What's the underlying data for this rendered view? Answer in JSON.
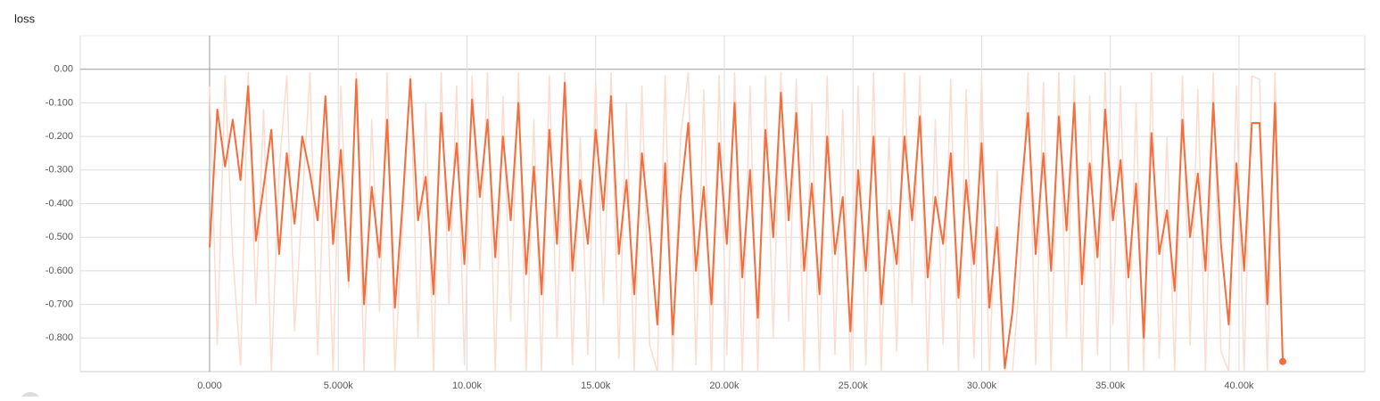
{
  "chart_data": {
    "type": "line",
    "title": "loss",
    "x": [
      0,
      300,
      600,
      900,
      1200,
      1500,
      1800,
      2100,
      2400,
      2700,
      3000,
      3300,
      3600,
      3900,
      4200,
      4500,
      4800,
      5100,
      5400,
      5700,
      6000,
      6300,
      6600,
      6900,
      7200,
      7500,
      7800,
      8100,
      8400,
      8700,
      9000,
      9300,
      9600,
      9900,
      10200,
      10500,
      10800,
      11100,
      11400,
      11700,
      12000,
      12300,
      12600,
      12900,
      13200,
      13500,
      13800,
      14100,
      14400,
      14700,
      15000,
      15300,
      15600,
      15900,
      16200,
      16500,
      16800,
      17100,
      17400,
      17700,
      18000,
      18300,
      18600,
      18900,
      19200,
      19500,
      19800,
      20100,
      20400,
      20700,
      21000,
      21300,
      21600,
      21900,
      22200,
      22500,
      22800,
      23100,
      23400,
      23700,
      24000,
      24300,
      24600,
      24900,
      25200,
      25500,
      25800,
      26100,
      26400,
      26700,
      27000,
      27300,
      27600,
      27900,
      28200,
      28500,
      28800,
      29100,
      29400,
      29700,
      30000,
      30300,
      30600,
      30900,
      31200,
      31500,
      31800,
      32100,
      32400,
      32700,
      33000,
      33300,
      33600,
      33900,
      34200,
      34500,
      34800,
      35100,
      35400,
      35700,
      36000,
      36300,
      36600,
      36900,
      37200,
      37500,
      37800,
      38100,
      38400,
      38700,
      39000,
      39300,
      39600,
      39900,
      40200,
      40500,
      40800,
      41100,
      41400,
      41700
    ],
    "series": [
      {
        "color": "#fbdccf",
        "values": [
          -0.05,
          -0.82,
          -0.02,
          -0.55,
          -0.88,
          -0.01,
          -0.7,
          -0.12,
          -0.9,
          -0.3,
          -0.02,
          -0.78,
          -0.4,
          -0.01,
          -0.85,
          -0.2,
          -0.9,
          -0.05,
          -0.65,
          -0.01,
          -0.9,
          -0.15,
          -0.72,
          -0.01,
          -0.9,
          -0.45,
          -0.02,
          -0.8,
          -0.1,
          -0.9,
          -0.01,
          -0.7,
          -0.05,
          -0.88,
          -0.02,
          -0.6,
          -0.01,
          -0.9,
          -0.08,
          -0.75,
          -0.01,
          -0.9,
          -0.15,
          -0.9,
          -0.02,
          -0.8,
          -0.01,
          -0.88,
          -0.2,
          -0.85,
          -0.03,
          -0.7,
          -0.01,
          -0.86,
          -0.1,
          -0.9,
          -0.05,
          -0.82,
          -0.9,
          -0.02,
          -0.9,
          -0.2,
          -0.01,
          -0.88,
          -0.06,
          -0.9,
          -0.02,
          -0.85,
          -0.01,
          -0.9,
          -0.05,
          -0.9,
          -0.02,
          -0.8,
          -0.01,
          -0.75,
          -0.03,
          -0.9,
          -0.1,
          -0.9,
          -0.02,
          -0.85,
          -0.12,
          -0.9,
          -0.05,
          -0.88,
          -0.01,
          -0.9,
          -0.2,
          -0.84,
          -0.01,
          -0.7,
          -0.02,
          -0.9,
          -0.15,
          -0.82,
          -0.03,
          -0.9,
          -0.06,
          -0.86,
          -0.02,
          -0.9,
          -0.3,
          -0.9,
          -0.9,
          -0.6,
          -0.01,
          -0.88,
          -0.04,
          -0.9,
          -0.01,
          -0.8,
          -0.02,
          -0.9,
          -0.08,
          -0.85,
          -0.01,
          -0.76,
          -0.05,
          -0.9,
          -0.1,
          -0.9,
          -0.01,
          -0.86,
          -0.2,
          -0.9,
          -0.02,
          -0.82,
          -0.06,
          -0.9,
          -0.01,
          -0.84,
          -0.9,
          -0.05,
          -0.9,
          -0.02,
          -0.03,
          -0.9,
          -0.01,
          -0.88
        ]
      },
      {
        "color": "#f46d3d",
        "values": [
          -0.53,
          -0.12,
          -0.29,
          -0.15,
          -0.33,
          -0.05,
          -0.51,
          -0.35,
          -0.18,
          -0.55,
          -0.25,
          -0.46,
          -0.2,
          -0.31,
          -0.45,
          -0.08,
          -0.52,
          -0.24,
          -0.63,
          -0.03,
          -0.7,
          -0.35,
          -0.56,
          -0.15,
          -0.71,
          -0.4,
          -0.03,
          -0.45,
          -0.32,
          -0.67,
          -0.13,
          -0.48,
          -0.22,
          -0.58,
          -0.09,
          -0.38,
          -0.15,
          -0.56,
          -0.2,
          -0.45,
          -0.1,
          -0.61,
          -0.29,
          -0.67,
          -0.18,
          -0.52,
          -0.04,
          -0.6,
          -0.33,
          -0.52,
          -0.18,
          -0.42,
          -0.08,
          -0.55,
          -0.33,
          -0.67,
          -0.25,
          -0.48,
          -0.76,
          -0.28,
          -0.79,
          -0.38,
          -0.16,
          -0.6,
          -0.35,
          -0.7,
          -0.22,
          -0.52,
          -0.1,
          -0.62,
          -0.3,
          -0.74,
          -0.18,
          -0.5,
          -0.07,
          -0.45,
          -0.13,
          -0.6,
          -0.34,
          -0.67,
          -0.2,
          -0.55,
          -0.38,
          -0.78,
          -0.3,
          -0.6,
          -0.2,
          -0.7,
          -0.42,
          -0.58,
          -0.2,
          -0.45,
          -0.14,
          -0.62,
          -0.38,
          -0.52,
          -0.25,
          -0.68,
          -0.33,
          -0.58,
          -0.22,
          -0.71,
          -0.47,
          -0.89,
          -0.72,
          -0.4,
          -0.13,
          -0.55,
          -0.25,
          -0.6,
          -0.14,
          -0.48,
          -0.1,
          -0.64,
          -0.28,
          -0.56,
          -0.12,
          -0.45,
          -0.27,
          -0.62,
          -0.34,
          -0.8,
          -0.19,
          -0.55,
          -0.42,
          -0.66,
          -0.15,
          -0.5,
          -0.31,
          -0.6,
          -0.1,
          -0.52,
          -0.76,
          -0.28,
          -0.6,
          -0.16,
          -0.16,
          -0.7,
          -0.1,
          -0.87
        ]
      }
    ],
    "xlim": [
      -5025,
      44890
    ],
    "ylim": [
      -0.9,
      0.1
    ],
    "xticks": [
      {
        "value": 0,
        "label": "0.000"
      },
      {
        "value": 5000,
        "label": "5.000k"
      },
      {
        "value": 10000,
        "label": "10.00k"
      },
      {
        "value": 15000,
        "label": "15.00k"
      },
      {
        "value": 20000,
        "label": "20.00k"
      },
      {
        "value": 25000,
        "label": "25.00k"
      },
      {
        "value": 30000,
        "label": "30.00k"
      },
      {
        "value": 35000,
        "label": "35.00k"
      },
      {
        "value": 40000,
        "label": "40.00k"
      }
    ],
    "yticks": [
      {
        "value": 0,
        "label": "0.00"
      },
      {
        "value": -0.1,
        "label": "-0.100"
      },
      {
        "value": -0.2,
        "label": "-0.200"
      },
      {
        "value": -0.3,
        "label": "-0.300"
      },
      {
        "value": -0.4,
        "label": "-0.400"
      },
      {
        "value": -0.5,
        "label": "-0.500"
      },
      {
        "value": -0.6,
        "label": "-0.600"
      },
      {
        "value": -0.7,
        "label": "-0.700"
      },
      {
        "value": -0.8,
        "label": "-0.800"
      }
    ],
    "grid": true
  }
}
